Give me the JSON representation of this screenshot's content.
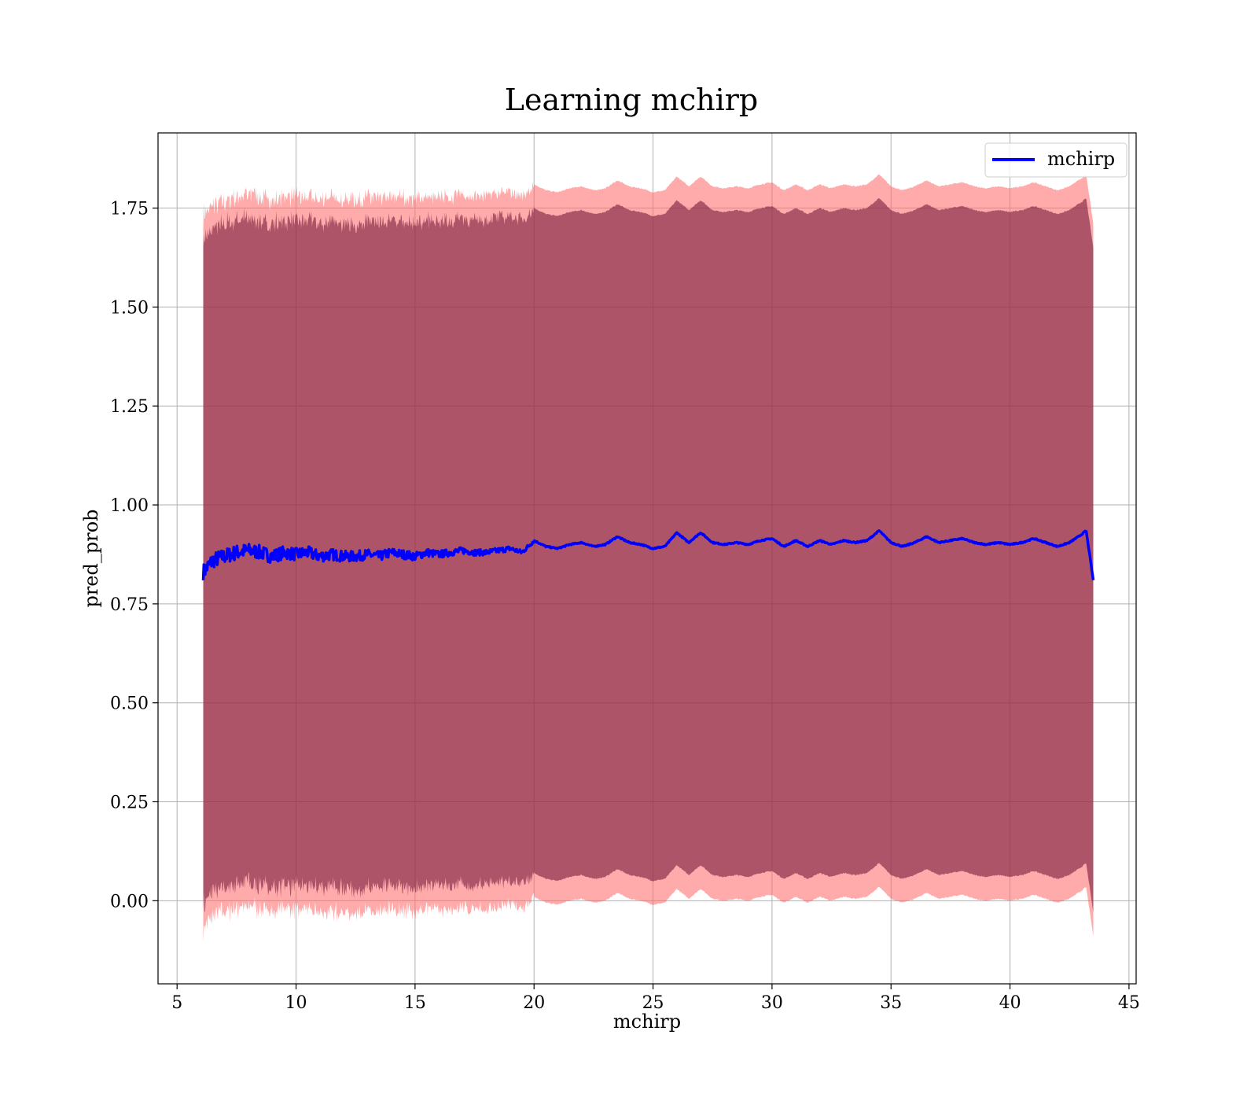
{
  "chart_data": {
    "type": "line",
    "title": "Learning mchirp",
    "xlabel": "mchirp",
    "ylabel": "pred_prob",
    "xlim": [
      4.2,
      45.3
    ],
    "ylim": [
      -0.21,
      1.94
    ],
    "xticks": [
      5,
      10,
      15,
      20,
      25,
      30,
      35,
      40,
      45
    ],
    "xtick_labels": [
      "5",
      "10",
      "15",
      "20",
      "25",
      "30",
      "35",
      "40",
      "45"
    ],
    "yticks": [
      0.0,
      0.25,
      0.5,
      0.75,
      1.0,
      1.25,
      1.5,
      1.75
    ],
    "ytick_labels": [
      "0.00",
      "0.25",
      "0.50",
      "0.75",
      "1.00",
      "1.25",
      "1.50",
      "1.75"
    ],
    "grid": true,
    "legend": {
      "position": "top-right",
      "entries": [
        "mchirp"
      ]
    },
    "colors": {
      "line": "#0000ff",
      "outer_band": "#ff6666",
      "inner_band": "#7a1f3f",
      "grid": "#b0b0b0"
    },
    "series": [
      {
        "name": "mchirp",
        "x": [
          6.1,
          6.5,
          7,
          7.5,
          8,
          8.5,
          9,
          9.5,
          10,
          10.5,
          11,
          11.5,
          12,
          12.5,
          13,
          13.5,
          14,
          14.5,
          15,
          15.5,
          16,
          16.5,
          17,
          17.5,
          18,
          18.5,
          19,
          19.5,
          20,
          20.5,
          21,
          21.5,
          22,
          22.5,
          23,
          23.5,
          24,
          24.5,
          25,
          25.5,
          26,
          26.5,
          27,
          27.5,
          28,
          28.5,
          29,
          29.5,
          30,
          30.5,
          31,
          31.5,
          32,
          32.5,
          33,
          33.5,
          34,
          34.5,
          35,
          35.5,
          36,
          36.5,
          37,
          37.5,
          38,
          38.5,
          39,
          39.5,
          40,
          40.5,
          41,
          41.5,
          42,
          42.5,
          43,
          43.2,
          43.5
        ],
        "y": [
          0.83,
          0.86,
          0.87,
          0.88,
          0.885,
          0.88,
          0.87,
          0.88,
          0.875,
          0.88,
          0.87,
          0.875,
          0.87,
          0.87,
          0.875,
          0.87,
          0.88,
          0.875,
          0.87,
          0.88,
          0.875,
          0.88,
          0.885,
          0.88,
          0.88,
          0.885,
          0.89,
          0.88,
          0.91,
          0.895,
          0.89,
          0.9,
          0.905,
          0.895,
          0.9,
          0.92,
          0.905,
          0.9,
          0.89,
          0.895,
          0.93,
          0.905,
          0.93,
          0.905,
          0.9,
          0.905,
          0.9,
          0.91,
          0.915,
          0.895,
          0.91,
          0.895,
          0.91,
          0.9,
          0.91,
          0.905,
          0.91,
          0.935,
          0.905,
          0.895,
          0.905,
          0.92,
          0.905,
          0.91,
          0.915,
          0.905,
          0.9,
          0.905,
          0.9,
          0.905,
          0.915,
          0.905,
          0.895,
          0.905,
          0.925,
          0.935,
          0.81
        ]
      }
    ],
    "bands": [
      {
        "label": "",
        "upper_offset": 0.9,
        "lower_offset": 0.9
      },
      {
        "label": "",
        "upper_offset": 0.84,
        "lower_offset": 0.84
      }
    ]
  }
}
